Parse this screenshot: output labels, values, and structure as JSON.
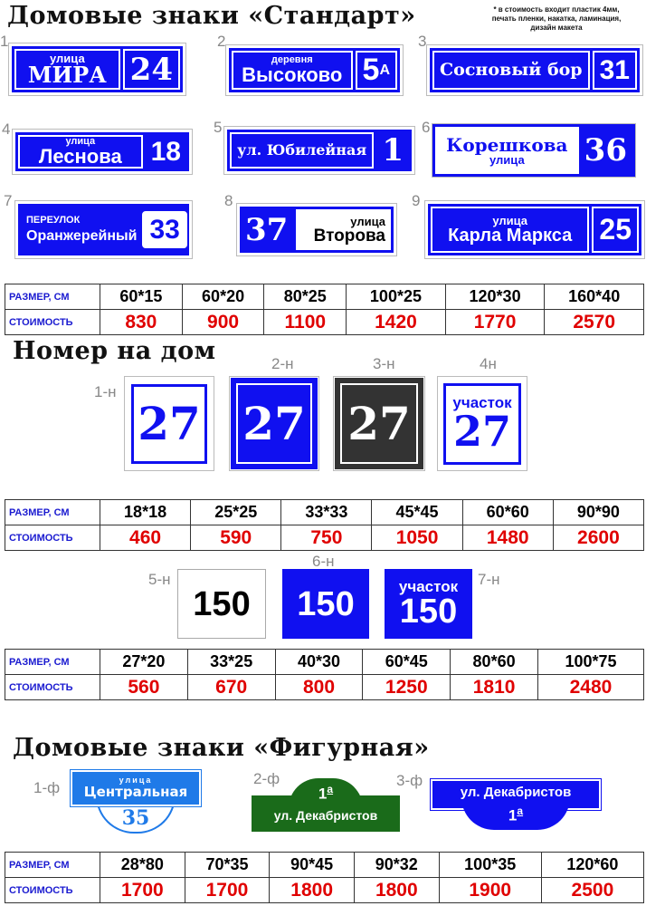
{
  "titles": {
    "standard": "Домовые знаки «Стандарт»",
    "house_number": "Номер на дом",
    "figured": "Домовые знаки «Фигурная»"
  },
  "note": [
    "* в стоимость входит пластик 4мм,",
    "печать пленки, накатка, ламинация,",
    "дизайн макета"
  ],
  "standard_signs": [
    {
      "label": "1",
      "top": "улица",
      "name": "МИРА",
      "number": "24"
    },
    {
      "label": "2",
      "top": "деревня",
      "name": "Высоково",
      "number": "5",
      "sup": "А"
    },
    {
      "label": "3",
      "name": "Сосновый бор",
      "number": "31"
    },
    {
      "label": "4",
      "top": "улица",
      "name": "Леснова",
      "number": "18"
    },
    {
      "label": "5",
      "name": "ул. Юбилейная",
      "number": "1"
    },
    {
      "label": "6",
      "name": "Корешкова",
      "bottom": "улица",
      "number": "36"
    },
    {
      "label": "7",
      "top": "ПЕРЕУЛОК",
      "name": "Оранжерейный",
      "number": "33"
    },
    {
      "label": "8",
      "number": "37",
      "top": "улица",
      "name": "Второва"
    },
    {
      "label": "9",
      "top": "улица",
      "name": "Карла Маркса",
      "number": "25"
    }
  ],
  "number_signs": [
    {
      "label": "1-н",
      "number": "27"
    },
    {
      "label": "2-н",
      "number": "27"
    },
    {
      "label": "3-н",
      "number": "27"
    },
    {
      "label": "4н",
      "top": "участок",
      "number": "27"
    },
    {
      "label": "5-н",
      "number": "150"
    },
    {
      "label": "6-н",
      "number": "150"
    },
    {
      "label": "7-н",
      "top": "участок",
      "number": "150"
    }
  ],
  "figured_signs": [
    {
      "label": "1-ф",
      "top": "улица",
      "name": "Центральная",
      "number": "35"
    },
    {
      "label": "2-ф",
      "number": "1",
      "sup": "а",
      "name": "ул. Декабристов"
    },
    {
      "label": "3-ф",
      "name": "ул. Декабристов",
      "number": "1",
      "sup": "а"
    }
  ],
  "colors": {
    "blue": "#1010f0",
    "red": "#e00000",
    "dark": "#333333",
    "green": "#1a6b1a",
    "light_blue": "#1f7ae8"
  },
  "tables": [
    {
      "size_label": "РАЗМЕР, СМ",
      "price_label": "СТОИМОСТЬ",
      "sizes": [
        "60*15",
        "60*20",
        "80*25",
        "100*25",
        "120*30",
        "160*40"
      ],
      "prices": [
        "830",
        "900",
        "1100",
        "1420",
        "1770",
        "2570"
      ]
    },
    {
      "size_label": "РАЗМЕР, СМ",
      "price_label": "СТОИМОСТЬ",
      "sizes": [
        "18*18",
        "25*25",
        "33*33",
        "45*45",
        "60*60",
        "90*90"
      ],
      "prices": [
        "460",
        "590",
        "750",
        "1050",
        "1480",
        "2600"
      ]
    },
    {
      "size_label": "РАЗМЕР, СМ",
      "price_label": "СТОИМОСТЬ",
      "sizes": [
        "27*20",
        "33*25",
        "40*30",
        "60*45",
        "80*60",
        "100*75"
      ],
      "prices": [
        "560",
        "670",
        "800",
        "1250",
        "1810",
        "2480"
      ]
    },
    {
      "size_label": "РАЗМЕР, СМ",
      "price_label": "СТОИМОСТЬ",
      "sizes": [
        "28*80",
        "70*35",
        "90*45",
        "90*32",
        "100*35",
        "120*60"
      ],
      "prices": [
        "1700",
        "1700",
        "1800",
        "1800",
        "1900",
        "2500"
      ]
    }
  ]
}
